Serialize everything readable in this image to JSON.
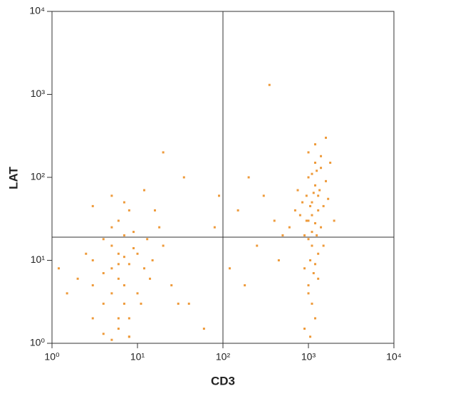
{
  "chart_data": {
    "type": "scatter",
    "xlabel": "CD3",
    "ylabel": "LAT",
    "color": "#ee9a3a",
    "xscale": "log",
    "yscale": "log",
    "xlim": [
      1,
      10000
    ],
    "ylim": [
      1,
      10000
    ],
    "xticks": [
      {
        "value": 1,
        "label": "10⁰"
      },
      {
        "value": 10,
        "label": "10¹"
      },
      {
        "value": 100,
        "label": "10²"
      },
      {
        "value": 1000,
        "label": "10³"
      },
      {
        "value": 10000,
        "label": "10⁴"
      }
    ],
    "yticks": [
      {
        "value": 1,
        "label": "10⁰"
      },
      {
        "value": 10,
        "label": "10¹"
      },
      {
        "value": 100,
        "label": "10²"
      },
      {
        "value": 1000,
        "label": "10³"
      },
      {
        "value": 10000,
        "label": "10⁴"
      }
    ],
    "quadrant_x": 100,
    "quadrant_y": 19,
    "x": [
      5,
      6,
      7,
      4,
      8,
      5,
      6,
      8,
      3,
      7,
      10,
      4,
      6,
      8,
      5,
      12,
      3,
      7,
      6,
      9,
      4,
      5,
      11,
      15,
      2,
      6,
      8,
      13,
      18,
      4,
      7,
      5,
      6,
      10,
      3,
      8,
      9,
      14,
      20,
      2.5,
      1.5,
      1.2,
      25,
      30,
      7,
      12,
      16,
      5,
      20,
      3,
      1000,
      1100,
      1200,
      900,
      1300,
      1000,
      1200,
      1100,
      1400,
      950,
      1050,
      1150,
      1250,
      1350,
      800,
      1500,
      1000,
      1100,
      1200,
      900,
      1300,
      1000,
      1400,
      700,
      1600,
      1100,
      1200,
      1050,
      1150,
      950,
      850,
      1250,
      1000,
      1100,
      1300,
      1200,
      1000,
      1400,
      1700,
      2000,
      600,
      750,
      1800,
      1500,
      1300,
      1050,
      900,
      1200,
      1600,
      1100,
      300,
      150,
      200,
      400,
      350,
      500,
      80,
      250,
      120,
      60,
      40,
      180,
      450,
      90,
      35
    ],
    "values": [
      8,
      12,
      5,
      3,
      9,
      15,
      2,
      1.2,
      10,
      20,
      4,
      7,
      1.5,
      1.2,
      25,
      8,
      2,
      11,
      6,
      14,
      1.3,
      4,
      3,
      10,
      6,
      30,
      40,
      18,
      25,
      18,
      3,
      1.1,
      9,
      12,
      5,
      2,
      22,
      6,
      15,
      12,
      4,
      8,
      5,
      3,
      50,
      70,
      40,
      60,
      200,
      45,
      30,
      50,
      80,
      20,
      40,
      100,
      150,
      15,
      25,
      60,
      10,
      7,
      120,
      70,
      35,
      45,
      5,
      3,
      2,
      1.5,
      12,
      200,
      180,
      40,
      90,
      35,
      28,
      45,
      65,
      30,
      50,
      20,
      18,
      22,
      60,
      9,
      4,
      130,
      55,
      30,
      25,
      70,
      150,
      15,
      6,
      1.2,
      8,
      250,
      300,
      110,
      60,
      40,
      100,
      30,
      1300,
      20,
      25,
      15,
      8,
      1.5,
      3,
      5,
      10,
      60,
      100
    ]
  }
}
